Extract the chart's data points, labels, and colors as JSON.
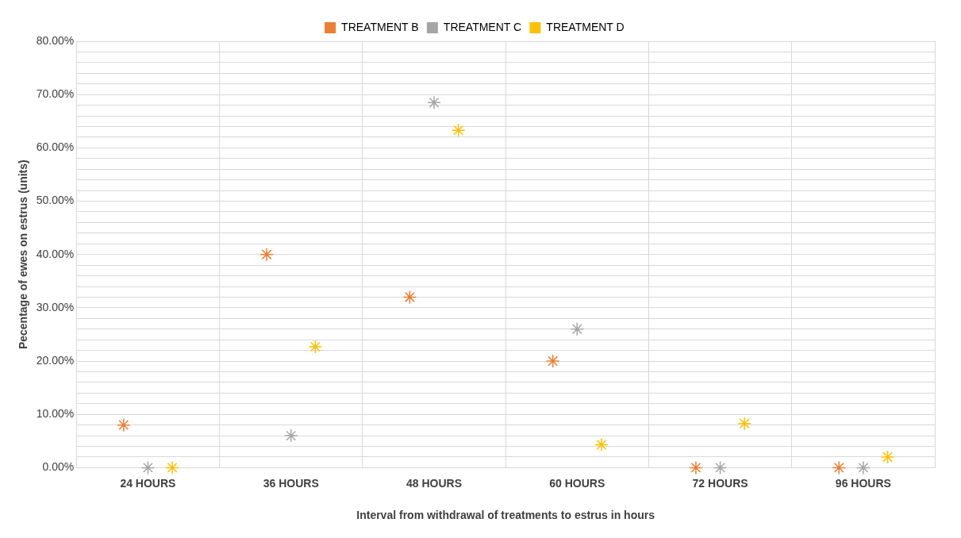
{
  "chart_data": {
    "type": "scatter",
    "xlabel": "Interval from withdrawal of treatments to estrus in hours",
    "ylabel": "Pecentage of ewes on estrus (units)",
    "categories": [
      "24 HOURS",
      "36 HOURS",
      "48 HOURS",
      "60 HOURS",
      "72 HOURS",
      "96 HOURS"
    ],
    "series": [
      {
        "name": "TREATMENT B",
        "color": "#ed7d31",
        "values": [
          8,
          40,
          32,
          20,
          0,
          0
        ]
      },
      {
        "name": "TREATMENT C",
        "color": "#a5a5a5",
        "values": [
          0,
          6,
          68.5,
          26,
          0,
          0
        ]
      },
      {
        "name": "TREATMENT D",
        "color": "#ffc000",
        "values": [
          0,
          22.7,
          63.3,
          4.3,
          8.3,
          2
        ]
      }
    ],
    "ylim": [
      0,
      80
    ],
    "yticks": [
      {
        "value": 0,
        "label": "0.00%"
      },
      {
        "value": 2,
        "label": null
      },
      {
        "value": 4,
        "label": null
      },
      {
        "value": 6,
        "label": null
      },
      {
        "value": 8,
        "label": null
      },
      {
        "value": 10,
        "label": "10.00%"
      },
      {
        "value": 12,
        "label": null
      },
      {
        "value": 14,
        "label": null
      },
      {
        "value": 16,
        "label": null
      },
      {
        "value": 18,
        "label": null
      },
      {
        "value": 20,
        "label": "20.00%"
      },
      {
        "value": 22,
        "label": null
      },
      {
        "value": 24,
        "label": null
      },
      {
        "value": 26,
        "label": null
      },
      {
        "value": 28,
        "label": null
      },
      {
        "value": 30,
        "label": "30.00%"
      },
      {
        "value": 32,
        "label": null
      },
      {
        "value": 34,
        "label": null
      },
      {
        "value": 36,
        "label": null
      },
      {
        "value": 38,
        "label": null
      },
      {
        "value": 40,
        "label": "40.00%"
      },
      {
        "value": 42,
        "label": null
      },
      {
        "value": 44,
        "label": null
      },
      {
        "value": 46,
        "label": null
      },
      {
        "value": 48,
        "label": null
      },
      {
        "value": 50,
        "label": "50.00%"
      },
      {
        "value": 52,
        "label": null
      },
      {
        "value": 54,
        "label": null
      },
      {
        "value": 56,
        "label": null
      },
      {
        "value": 58,
        "label": null
      },
      {
        "value": 60,
        "label": "60.00%"
      },
      {
        "value": 62,
        "label": null
      },
      {
        "value": 64,
        "label": null
      },
      {
        "value": 66,
        "label": null
      },
      {
        "value": 68,
        "label": null
      },
      {
        "value": 70,
        "label": "70.00%"
      },
      {
        "value": 72,
        "label": null
      },
      {
        "value": 74,
        "label": null
      },
      {
        "value": 76,
        "label": null
      },
      {
        "value": 78,
        "label": null
      },
      {
        "value": 80,
        "label": "80.00%"
      }
    ],
    "grid": true,
    "legend": "top",
    "marker": "cross"
  }
}
